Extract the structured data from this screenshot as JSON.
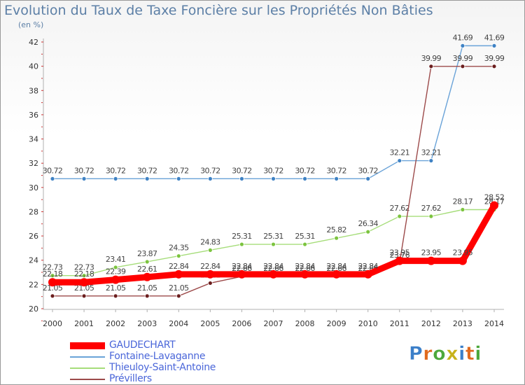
{
  "title": "Evolution du Taux de Taxe Foncière sur les Propriétés Non Bâties",
  "subtitle": "(en %)",
  "logo": {
    "text": "Proxiti",
    "colors": [
      "#3b7fc9",
      "#e06a1e",
      "#4da83c",
      "#c7b21a",
      "#3b7fc9",
      "#e06a1e",
      "#4da83c"
    ]
  },
  "chart_data": {
    "type": "line",
    "title": "Evolution du Taux de Taxe Foncière sur les Propriétés Non Bâties",
    "ylabel": "(en %)",
    "xlabel": "",
    "ylim": [
      20,
      42
    ],
    "yticks": [
      20,
      22,
      24,
      26,
      28,
      30,
      32,
      34,
      36,
      38,
      40,
      42
    ],
    "grid": false,
    "legend_position": "bottom-left",
    "x": [
      "2000",
      "2001",
      "2002",
      "2003",
      "2004",
      "2005",
      "2006",
      "2007",
      "2008",
      "2009",
      "2010",
      "2011",
      "2012",
      "2013",
      "2014"
    ],
    "series": [
      {
        "name": "GAUDECHART",
        "color": "#ff0000",
        "width": "thick",
        "values": [
          22.18,
          22.18,
          22.39,
          22.61,
          22.84,
          22.84,
          22.84,
          22.84,
          22.84,
          22.84,
          22.84,
          23.95,
          23.95,
          23.95,
          28.52
        ],
        "labels": [
          "22.18",
          "22.18",
          "22.39",
          "22.61",
          "22.84",
          "22.84",
          "22.84",
          "22.84",
          "22.84",
          "22.84",
          "22.84",
          "23.95",
          "23.95",
          "23.95",
          "28.52"
        ]
      },
      {
        "name": "Fontaine-Lavaganne",
        "color": "#6aa3d8",
        "marker": "#3f82c4",
        "values": [
          30.72,
          30.72,
          30.72,
          30.72,
          30.72,
          30.72,
          30.72,
          30.72,
          30.72,
          30.72,
          30.72,
          32.21,
          32.21,
          41.69,
          41.69
        ],
        "labels": [
          "30.72",
          "30.72",
          "30.72",
          "30.72",
          "30.72",
          "30.72",
          "30.72",
          "30.72",
          "30.72",
          "30.72",
          "30.72",
          "32.21",
          "32.21",
          "41.69",
          "41.69"
        ]
      },
      {
        "name": "Thieuloy-Saint-Antoine",
        "color": "#a6dd7a",
        "marker": "#7cc43f",
        "values": [
          22.73,
          22.73,
          23.41,
          23.87,
          24.35,
          24.83,
          25.31,
          25.31,
          25.31,
          25.82,
          26.34,
          27.62,
          27.62,
          28.17,
          28.17
        ],
        "labels": [
          "22.73",
          "22.73",
          "23.41",
          "23.87",
          "24.35",
          "24.83",
          "25.31",
          "25.31",
          "25.31",
          "25.82",
          "26.34",
          "27.62",
          "27.62",
          "28.17",
          "28.17"
        ]
      },
      {
        "name": "Prévillers",
        "color": "#9c4a4a",
        "marker": "#6b1e1e",
        "values": [
          21.05,
          21.05,
          21.05,
          21.05,
          21.05,
          22.11,
          22.66,
          22.66,
          22.66,
          22.66,
          22.66,
          23.76,
          39.99,
          39.99,
          39.99
        ],
        "labels": [
          "21.05",
          "21.05",
          "21.05",
          "21.05",
          "21.05",
          "22.11",
          "22.66",
          "22.66",
          "22.66",
          "22.66",
          "22.66",
          "23.76",
          "39.99",
          "39.99",
          "39.99"
        ]
      }
    ]
  }
}
